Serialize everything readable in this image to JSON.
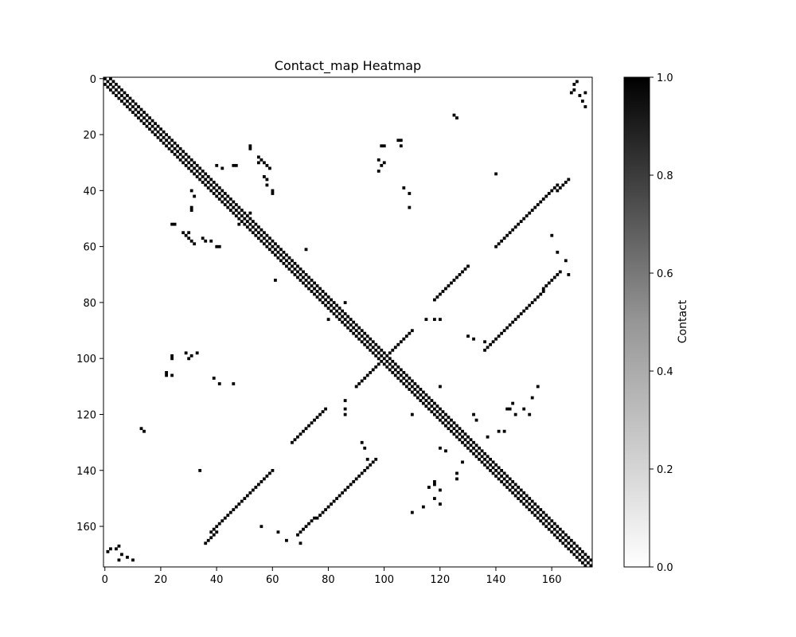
{
  "chart_data": {
    "type": "heatmap",
    "title": "Contact_map Heatmap",
    "xlabel": "",
    "ylabel": "",
    "size": 175,
    "xlim": [
      0,
      175
    ],
    "ylim": [
      175,
      0
    ],
    "x_ticks": [
      "0",
      "20",
      "40",
      "60",
      "80",
      "100",
      "120",
      "140",
      "160"
    ],
    "y_ticks": [
      "0",
      "20",
      "40",
      "60",
      "80",
      "100",
      "120",
      "140",
      "160"
    ],
    "colorbar": {
      "label": "Contact",
      "vmin": 0.0,
      "vmax": 1.0,
      "ticks": [
        "0.0",
        "0.2",
        "0.4",
        "0.6",
        "0.8",
        "1.0"
      ],
      "colormap": "Greys"
    },
    "colors": {
      "contact": "#000000",
      "background": "#ffffff"
    },
    "contacts": {
      "diagonal_band_offset": 2,
      "segments_antiparallel": [
        [
          38,
          162,
          60,
          140
        ],
        [
          67,
          130,
          79,
          118
        ],
        [
          83,
          150,
          97,
          136
        ],
        [
          90,
          110,
          101,
          99
        ],
        [
          69,
          163,
          82,
          151
        ],
        [
          36,
          166,
          40,
          162
        ]
      ],
      "segments_parallel": [
        [
          28,
          55,
          32,
          59
        ],
        [
          62,
          64,
          66,
          68
        ]
      ],
      "points": [
        [
          1,
          175
        ],
        [
          1,
          169
        ],
        [
          5,
          167
        ],
        [
          5,
          172
        ],
        [
          25,
          52
        ],
        [
          31,
          47
        ],
        [
          32,
          42
        ],
        [
          30,
          55
        ],
        [
          35,
          57
        ],
        [
          36,
          58
        ],
        [
          38,
          58
        ],
        [
          40,
          31
        ],
        [
          46,
          31
        ],
        [
          48,
          52
        ],
        [
          52,
          24
        ],
        [
          56,
          29
        ],
        [
          58,
          38
        ],
        [
          60,
          40
        ],
        [
          60,
          41
        ],
        [
          61,
          72
        ],
        [
          72,
          61
        ],
        [
          80,
          86
        ],
        [
          84,
          82
        ],
        [
          86,
          120
        ],
        [
          13,
          125
        ],
        [
          14,
          126
        ],
        [
          22,
          106
        ],
        [
          24,
          106
        ],
        [
          29,
          98
        ],
        [
          31,
          99
        ],
        [
          34,
          140
        ],
        [
          92,
          130
        ],
        [
          93,
          132
        ],
        [
          94,
          136
        ],
        [
          98,
          29
        ],
        [
          98,
          33
        ],
        [
          99,
          24
        ],
        [
          100,
          24
        ],
        [
          100,
          30
        ],
        [
          105,
          22
        ],
        [
          106,
          24
        ],
        [
          109,
          46
        ],
        [
          107,
          39
        ],
        [
          109,
          41
        ],
        [
          115,
          86
        ],
        [
          118,
          86
        ],
        [
          120,
          110
        ],
        [
          128,
          137
        ],
        [
          132,
          120
        ],
        [
          133,
          122
        ],
        [
          141,
          126
        ],
        [
          143,
          126
        ],
        [
          144,
          118
        ],
        [
          145,
          118
        ],
        [
          146,
          116
        ],
        [
          147,
          120
        ],
        [
          150,
          118
        ],
        [
          152,
          120
        ],
        [
          153,
          114
        ],
        [
          155,
          110
        ],
        [
          160,
          56
        ],
        [
          162,
          62
        ],
        [
          165,
          65
        ],
        [
          166,
          70
        ],
        [
          168,
          2
        ],
        [
          168,
          4
        ],
        [
          170,
          6
        ],
        [
          171,
          8
        ],
        [
          172,
          10
        ]
      ]
    }
  }
}
